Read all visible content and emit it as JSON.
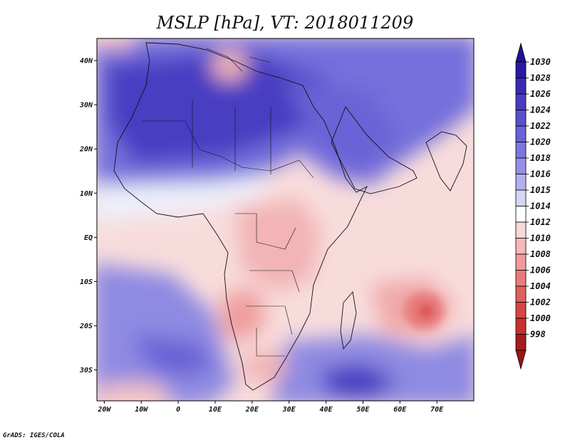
{
  "title": "MSLP [hPa], VT: 2018011209",
  "credit": "GrADS: IGES/COLA",
  "map": {
    "lon_range": [
      -22,
      80
    ],
    "lat_range": [
      -37,
      45
    ],
    "x_ticks": [
      "20W",
      "10W",
      "0",
      "10E",
      "20E",
      "30E",
      "40E",
      "50E",
      "60E",
      "70E"
    ],
    "x_tick_lons": [
      -20,
      -10,
      0,
      10,
      20,
      30,
      40,
      50,
      60,
      70
    ],
    "y_ticks": [
      "40N",
      "30N",
      "20N",
      "10N",
      "EQ",
      "10S",
      "20S",
      "30S"
    ],
    "y_tick_lats": [
      40,
      30,
      20,
      10,
      0,
      -10,
      -20,
      -30
    ]
  },
  "colorbar": {
    "labels": [
      "1030",
      "1028",
      "1026",
      "1024",
      "1022",
      "1020",
      "1018",
      "1016",
      "1015",
      "1014",
      "1012",
      "1010",
      "1008",
      "1006",
      "1004",
      "1002",
      "1000",
      "998"
    ],
    "colors": [
      "#2a1a9e",
      "#3a2ab0",
      "#4a3cc0",
      "#5a4fcc",
      "#6a62d6",
      "#7d76de",
      "#9590e6",
      "#b2b0ee",
      "#d4d6f6",
      "#ffffff",
      "#fbd7d7",
      "#f7b8b8",
      "#f09a9a",
      "#e87c7c",
      "#e05f5f",
      "#d84545",
      "#c83030",
      "#a51c1c"
    ],
    "top_arrow_color": "#1f1390",
    "bottom_arrow_color": "#9a1515"
  }
}
